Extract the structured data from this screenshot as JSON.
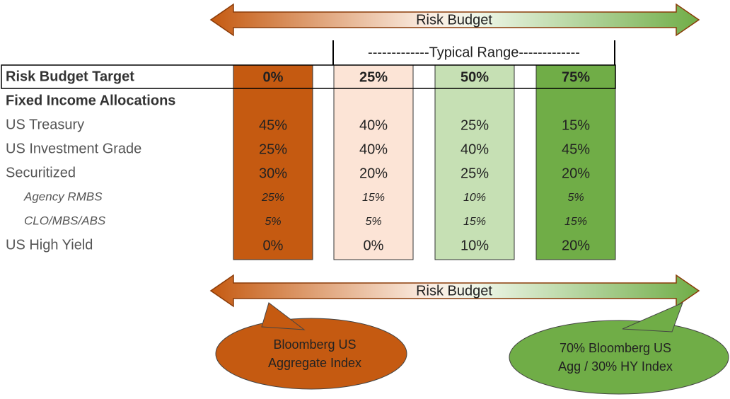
{
  "top_arrow": {
    "label": "Risk Budget"
  },
  "typical_range": {
    "label": "-------------Typical Range-------------"
  },
  "table": {
    "header": {
      "label": "Risk Budget Target",
      "columns": [
        "0%",
        "25%",
        "50%",
        "75%"
      ]
    },
    "section": "Fixed Income Allocations",
    "column_colors": [
      "#c55a11",
      "#fce4d6",
      "#c6e0b4",
      "#70ad47"
    ],
    "rows": [
      {
        "label": "US Treasury",
        "values": [
          "45%",
          "40%",
          "25%",
          "15%"
        ]
      },
      {
        "label": "US Investment Grade",
        "values": [
          "25%",
          "40%",
          "40%",
          "45%"
        ]
      },
      {
        "label": "Securitized",
        "values": [
          "30%",
          "20%",
          "25%",
          "20%"
        ],
        "children": [
          {
            "label": "Agency RMBS",
            "values": [
              "25%",
              "15%",
              "10%",
              "5%"
            ]
          },
          {
            "label": "CLO/MBS/ABS",
            "values": [
              "5%",
              "5%",
              "15%",
              "15%"
            ]
          }
        ]
      },
      {
        "label": "US High Yield",
        "values": [
          "0%",
          "0%",
          "10%",
          "20%"
        ]
      }
    ]
  },
  "bottom_arrow": {
    "label": "Risk Budget"
  },
  "callouts": [
    {
      "lines": [
        "Bloomberg US",
        "Aggregate Index"
      ],
      "color": "#c55a11"
    },
    {
      "lines": [
        "70% Bloomberg US",
        "Agg / 30% HY Index"
      ],
      "color": "#70ad47"
    }
  ]
}
